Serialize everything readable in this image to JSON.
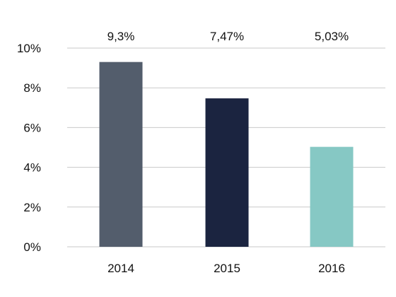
{
  "chart_data": {
    "type": "bar",
    "title": "",
    "xlabel": "",
    "ylabel": "",
    "categories": [
      "2014",
      "2015",
      "2016"
    ],
    "values": [
      9.3,
      7.47,
      5.03
    ],
    "data_labels": [
      "9,3%",
      "7,47%",
      "5,03%"
    ],
    "ylim": [
      0,
      10
    ],
    "yticks": [
      0,
      2,
      4,
      6,
      8,
      10
    ],
    "ytick_labels": [
      "0%",
      "2%",
      "4%",
      "6%",
      "8%",
      "10%"
    ],
    "bar_colors": [
      "#535d6c",
      "#1b2440",
      "#86c8c4"
    ],
    "grid": true,
    "legend": "none"
  }
}
